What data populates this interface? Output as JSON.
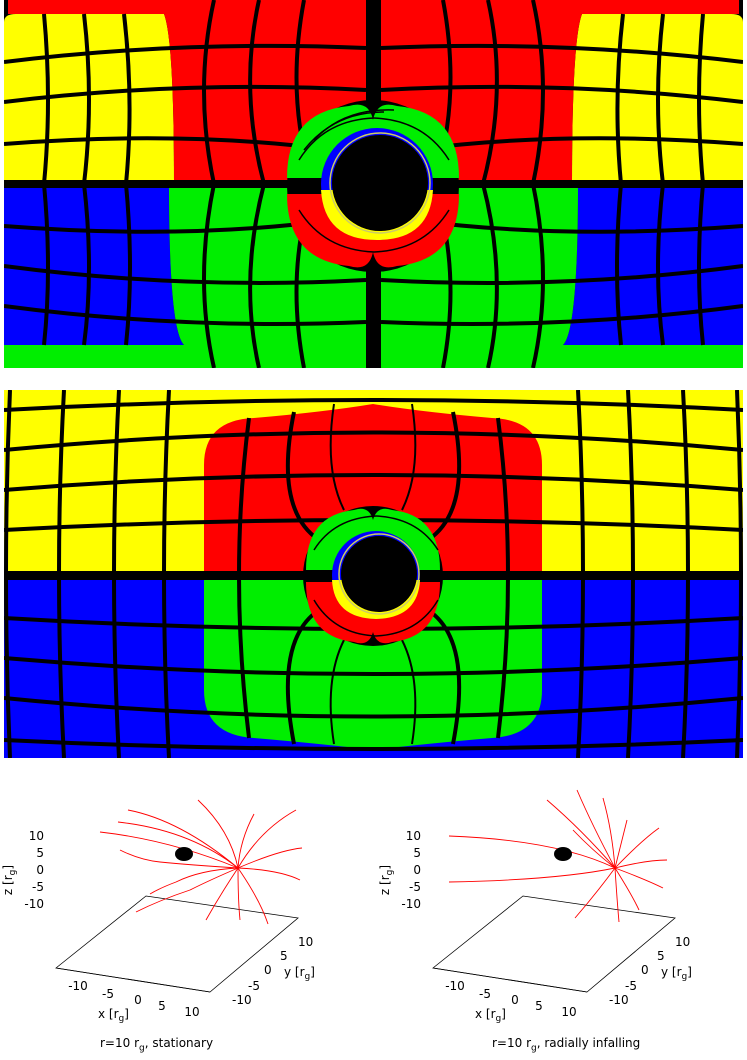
{
  "colors": {
    "red": "#ff0000",
    "yellow": "#ffff00",
    "blue": "#0000ff",
    "green": "#00ee00",
    "black": "#000000",
    "trajectory": "#ff0000"
  },
  "panels": [
    {
      "name": "stationary-view"
    },
    {
      "name": "infalling-view"
    }
  ],
  "plots": [
    {
      "z_axis_label": "z [r",
      "x_axis_label": "x [r",
      "y_axis_label": "y [r",
      "subscript": "g",
      "axis_suffix": "]",
      "z_ticks": [
        "10",
        "5",
        "0",
        "-5",
        "-10"
      ],
      "x_ticks": [
        "-10",
        "-5",
        "0",
        "5",
        "10"
      ],
      "y_ticks": [
        "-10",
        "-5",
        "0",
        "5",
        "10"
      ],
      "caption_prefix": "r=10 r",
      "caption_suffix": ", stationary"
    },
    {
      "z_axis_label": "z [r",
      "x_axis_label": "x [r",
      "y_axis_label": "y [r",
      "subscript": "g",
      "axis_suffix": "]",
      "z_ticks": [
        "10",
        "5",
        "0",
        "-5",
        "-10"
      ],
      "x_ticks": [
        "-10",
        "-5",
        "0",
        "5",
        "10"
      ],
      "y_ticks": [
        "-10",
        "-5",
        "0",
        "5",
        "10"
      ],
      "caption_prefix": "r=10 r",
      "caption_suffix": ", radially infalling"
    }
  ]
}
